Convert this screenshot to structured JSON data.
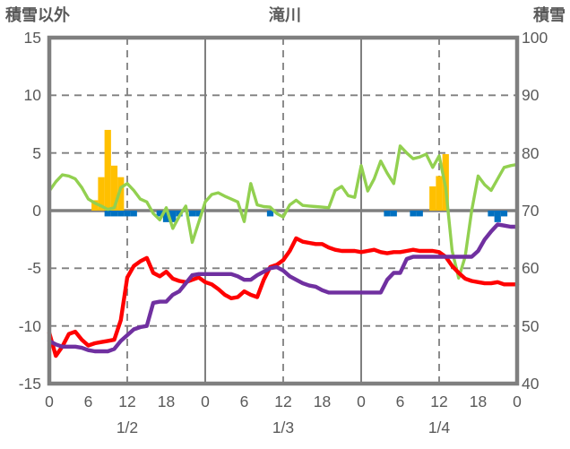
{
  "title": "滝川",
  "left_axis": {
    "label": "積雪以外",
    "ticks": [
      15,
      10,
      5,
      0,
      -5,
      -10,
      -15
    ],
    "min": -15,
    "max": 15
  },
  "right_axis": {
    "label": "積雪",
    "ticks": [
      100,
      90,
      80,
      70,
      60,
      50,
      40
    ],
    "min": 40,
    "max": 100
  },
  "x_axis": {
    "hour_ticks": [
      "0",
      "6",
      "12",
      "18",
      "0",
      "6",
      "12",
      "18",
      "0",
      "6",
      "12",
      "18",
      "0"
    ],
    "hour_positions": [
      0,
      6,
      12,
      18,
      24,
      30,
      36,
      42,
      48,
      54,
      60,
      66,
      72
    ],
    "date_labels": [
      "1/2",
      "1/3",
      "1/4"
    ],
    "date_positions": [
      12,
      36,
      60
    ]
  },
  "colors": {
    "frame": "#7F7F7F",
    "grid": "#7F7F7F",
    "text": "#595959",
    "green_line": "#92D050",
    "red_line": "#FF0000",
    "purple_line": "#7030A0",
    "orange_bar": "#FFC000",
    "blue_bar": "#0070C0"
  },
  "chart_data": {
    "type": "line+bar combo",
    "title": "滝川",
    "x_range_hours": [
      0,
      72
    ],
    "x_step_hours": 1,
    "left_ylim": [
      -15,
      15
    ],
    "right_ylim": [
      40,
      100
    ],
    "grid": "dashed at 5-unit (left) / 10-unit (right) intervals; solid vertical lines at day boundaries (h24, h48); dashed vertical at midday (h12, h36, h60); thick solid zero line",
    "legend": "none",
    "series": [
      {
        "name": "green-line",
        "type": "line",
        "axis": "right",
        "color": "#92D050",
        "values": [
          73.4,
          75,
          76.2,
          76,
          75.5,
          74,
          72,
          71.3,
          70.8,
          70.2,
          70.5,
          74,
          74.7,
          73.5,
          72,
          71.5,
          69.5,
          68.4,
          70.5,
          66.9,
          69,
          70.8,
          64.5,
          68,
          71.5,
          72.8,
          73.1,
          72.5,
          72,
          71.5,
          68.1,
          74.7,
          71,
          70.7,
          70.6,
          69.5,
          68.9,
          71,
          71.8,
          70.9,
          70.8,
          70.7,
          70.6,
          70.5,
          73.5,
          74.2,
          72.6,
          72.3,
          77.8,
          73.4,
          75.5,
          78.6,
          76.5,
          74.7,
          81.2,
          80,
          79,
          79.3,
          79.8,
          77.5,
          79.5,
          74,
          63,
          58.3,
          62,
          70,
          76,
          74.5,
          73.5,
          75.5,
          77.5,
          77.8,
          78
        ]
      },
      {
        "name": "red-line",
        "type": "line",
        "axis": "left",
        "color": "#FF0000",
        "values": [
          -10.6,
          -12.6,
          -11.8,
          -10.7,
          -10.5,
          -11.2,
          -11.7,
          -11.5,
          -11.4,
          -11.3,
          -11.2,
          -9.5,
          -5.8,
          -4.8,
          -4.4,
          -4.1,
          -5.4,
          -5.7,
          -5.3,
          -5.9,
          -6.1,
          -6.2,
          -6,
          -5.8,
          -6.2,
          -6.4,
          -6.8,
          -7.3,
          -7.6,
          -7.5,
          -7,
          -7.3,
          -7.5,
          -6,
          -4.9,
          -4.7,
          -4.3,
          -3.5,
          -2.4,
          -2.7,
          -2.8,
          -2.9,
          -2.9,
          -3.2,
          -3.4,
          -3.5,
          -3.5,
          -3.5,
          -3.6,
          -3.5,
          -3.4,
          -3.6,
          -3.7,
          -3.6,
          -3.6,
          -3.5,
          -3.4,
          -3.5,
          -3.5,
          -3.5,
          -3.6,
          -4,
          -4.8,
          -5.4,
          -5.9,
          -6.1,
          -6.2,
          -6.3,
          -6.3,
          -6.2,
          -6.4,
          -6.4,
          -6.4
        ]
      },
      {
        "name": "purple-line",
        "type": "line",
        "axis": "left",
        "color": "#7030A0",
        "values": [
          -11.3,
          -11.6,
          -11.8,
          -11.8,
          -11.8,
          -11.9,
          -12.1,
          -12.2,
          -12.2,
          -12.2,
          -12,
          -11.3,
          -10.8,
          -10.3,
          -10.1,
          -10,
          -8,
          -7.9,
          -7.9,
          -7.3,
          -7,
          -6.3,
          -5.6,
          -5.5,
          -5.5,
          -5.5,
          -5.5,
          -5.5,
          -5.5,
          -5.7,
          -6,
          -6,
          -5.6,
          -5.3,
          -5,
          -4.9,
          -5.2,
          -5.7,
          -6,
          -6.3,
          -6.5,
          -6.6,
          -6.9,
          -7.1,
          -7.1,
          -7.1,
          -7.1,
          -7.1,
          -7.1,
          -7.1,
          -7.1,
          -7.1,
          -6,
          -5.4,
          -5.4,
          -4.2,
          -4,
          -4,
          -4,
          -4,
          -4,
          -4,
          -4,
          -4,
          -4,
          -4,
          -3.5,
          -2.5,
          -1.8,
          -1.2,
          -1.3,
          -1.4,
          -1.4
        ]
      },
      {
        "name": "orange-bars",
        "type": "bar",
        "axis": "left",
        "color": "#FFC000",
        "points": [
          {
            "hour": 7,
            "value": 0.9
          },
          {
            "hour": 8,
            "value": 2.9
          },
          {
            "hour": 9,
            "value": 7.0
          },
          {
            "hour": 10,
            "value": 3.9
          },
          {
            "hour": 11,
            "value": 2.9
          },
          {
            "hour": 59,
            "value": 2.1
          },
          {
            "hour": 60,
            "value": 3.0
          },
          {
            "hour": 61,
            "value": 4.9
          }
        ]
      },
      {
        "name": "blue-bars",
        "type": "bar",
        "axis": "left",
        "color": "#0070C0",
        "points": [
          {
            "hour": 9,
            "value": -0.5
          },
          {
            "hour": 10,
            "value": -0.5
          },
          {
            "hour": 11,
            "value": -0.5
          },
          {
            "hour": 12,
            "value": -0.5
          },
          {
            "hour": 13,
            "value": -0.5
          },
          {
            "hour": 17,
            "value": -0.5
          },
          {
            "hour": 18,
            "value": -1.0
          },
          {
            "hour": 19,
            "value": -1.0
          },
          {
            "hour": 20,
            "value": -0.5
          },
          {
            "hour": 22,
            "value": -0.5
          },
          {
            "hour": 23,
            "value": -0.5
          },
          {
            "hour": 34,
            "value": -0.5
          },
          {
            "hour": 52,
            "value": -0.5
          },
          {
            "hour": 53,
            "value": -0.5
          },
          {
            "hour": 56,
            "value": -0.5
          },
          {
            "hour": 57,
            "value": -0.5
          },
          {
            "hour": 68,
            "value": -0.5
          },
          {
            "hour": 69,
            "value": -1.0
          },
          {
            "hour": 70,
            "value": -0.5
          }
        ]
      }
    ]
  }
}
